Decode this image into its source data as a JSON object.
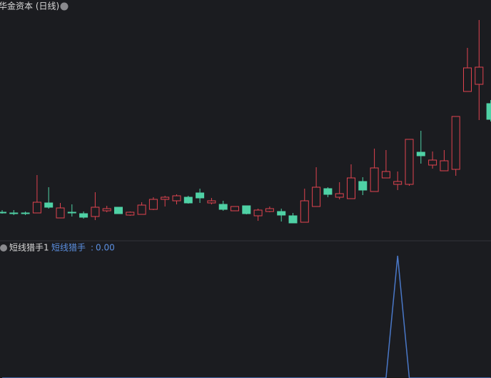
{
  "chart_data": [
    {
      "type": "candlestick",
      "title": "华金资本 (日线)",
      "open": [
        4.3,
        4.2,
        4.2,
        4.2,
        5.6,
        3.5,
        4.3,
        4.1,
        3.7,
        4.5,
        5.0,
        3.9,
        4.0,
        4.7,
        6.1,
        5.9,
        6.4,
        7.0,
        5.6,
        5.4,
        4.5,
        5.2,
        3.8,
        4.4,
        4.4,
        3.8,
        2.9,
        5.1,
        7.6,
        6.4,
        6.2,
        8.6,
        7.2,
        9.1,
        8.2,
        8.2,
        12.7,
        10.9,
        10.1,
        10.3,
        21.2,
        22.2,
        19.5
      ],
      "high": [
        4.6,
        4.6,
        4.4,
        9.5,
        7.8,
        5.6,
        5.4,
        4.4,
        7.1,
        5.2,
        5.0,
        4.4,
        5.7,
        6.4,
        6.6,
        6.8,
        6.6,
        7.6,
        6.3,
        5.9,
        5.1,
        5.2,
        4.8,
        5.1,
        4.8,
        4.2,
        7.6,
        10.6,
        7.8,
        8.5,
        11.0,
        9.2,
        13.2,
        13.0,
        10.0,
        14.5,
        15.7,
        12.8,
        13.0,
        17.7,
        27.3,
        31.2,
        20.0
      ],
      "low": [
        4.1,
        3.9,
        3.9,
        4.2,
        4.8,
        3.5,
        3.7,
        3.4,
        3.2,
        4.3,
        4.1,
        3.8,
        4.0,
        4.6,
        5.1,
        5.4,
        5.5,
        5.6,
        5.4,
        4.5,
        4.5,
        4.0,
        3.1,
        4.3,
        3.0,
        2.8,
        2.9,
        5.1,
        6.4,
        6.1,
        6.2,
        6.7,
        7.2,
        9.1,
        7.4,
        8.0,
        11.1,
        10.4,
        10.1,
        9.4,
        21.2,
        17.2,
        17.0
      ],
      "close": [
        4.3,
        4.2,
        4.2,
        5.7,
        5.0,
        4.9,
        4.3,
        3.6,
        5.0,
        4.8,
        4.1,
        4.3,
        5.3,
        6.1,
        6.4,
        6.6,
        5.6,
        6.3,
        5.9,
        4.7,
        5.1,
        4.1,
        4.6,
        4.8,
        3.9,
        2.8,
        5.9,
        7.8,
        6.8,
        6.9,
        9.1,
        7.4,
        10.5,
        10.0,
        8.6,
        14.5,
        12.2,
        11.6,
        11.5,
        17.7,
        24.5,
        24.6,
        17.3
      ],
      "ylim": [
        0,
        34
      ],
      "up_color": "#e0434f",
      "down_color": "#4fd1a5"
    },
    {
      "type": "line",
      "title": "短线猎手1",
      "series": [
        {
          "name": "短线猎手",
          "color": "#4a78c8",
          "value_label": "0.00",
          "values": [
            0,
            0,
            0,
            0,
            0,
            0,
            0,
            0,
            0,
            0,
            0,
            0,
            0,
            0,
            0,
            0,
            0,
            0,
            0,
            0,
            0,
            0,
            0,
            0,
            0,
            0,
            0,
            0,
            0,
            0,
            0,
            0,
            0,
            0,
            1,
            0,
            0,
            0,
            0,
            0,
            0,
            0,
            0
          ]
        }
      ],
      "ylim": [
        0,
        1
      ]
    }
  ]
}
